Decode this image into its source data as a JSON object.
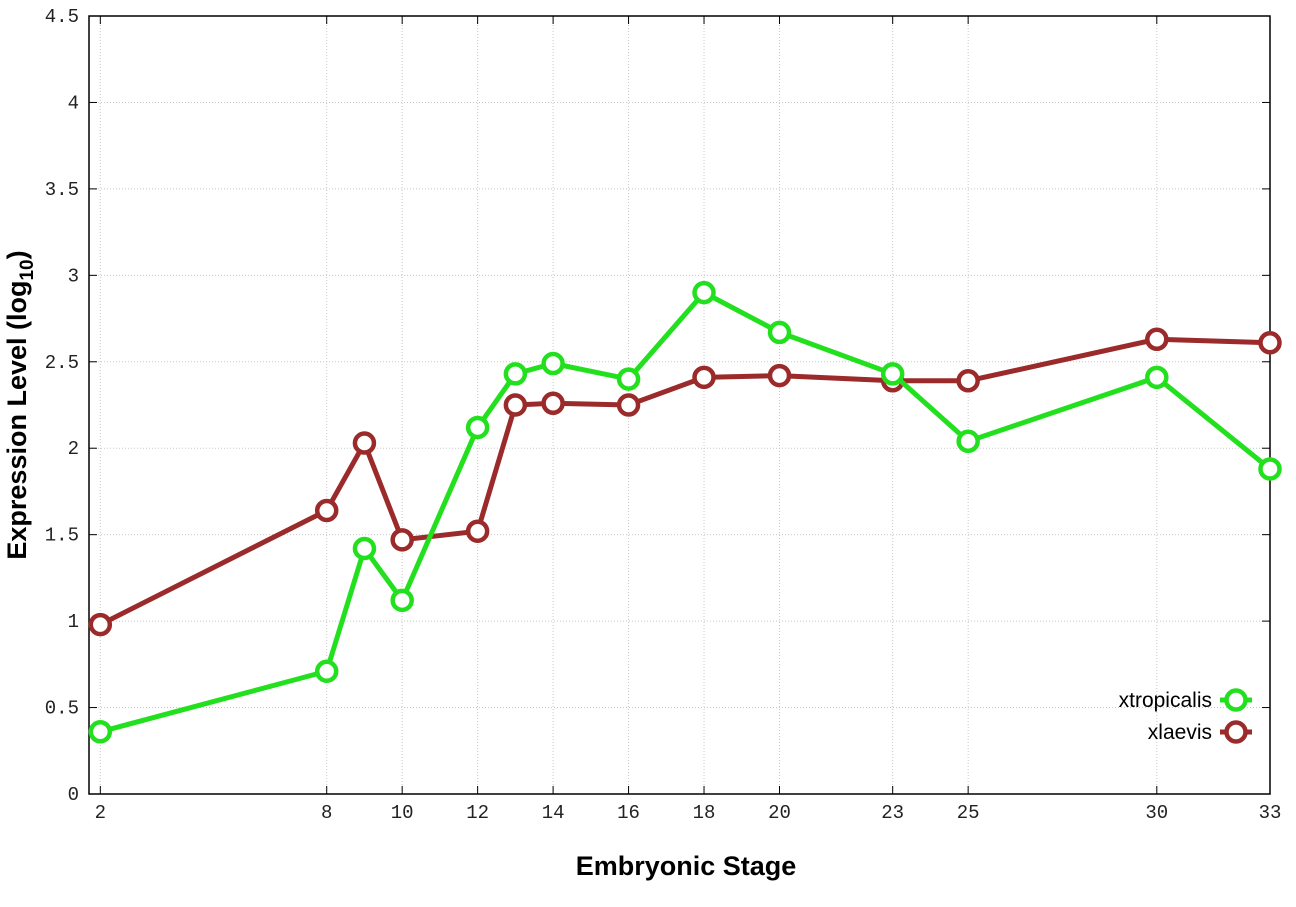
{
  "chart_data": {
    "type": "line",
    "xlabel": "Embryonic Stage",
    "ylabel": "Expression Level (log",
    "ylabel_subscript": "10",
    "ylabel_suffix": ")",
    "xlim": [
      1.7,
      33
    ],
    "ylim": [
      0,
      4.5
    ],
    "xticks": [
      2,
      8,
      10,
      12,
      14,
      16,
      18,
      20,
      23,
      25,
      30,
      33
    ],
    "yticks": [
      0,
      0.5,
      1,
      1.5,
      2,
      2.5,
      3,
      3.5,
      4,
      4.5
    ],
    "ytick_labels": [
      "0",
      "0.5",
      "1",
      "1.5",
      "2",
      "2.5",
      "3",
      "3.5",
      "4",
      "4.5"
    ],
    "grid": true,
    "legend_position": "bottom-right",
    "x": [
      2,
      8,
      9,
      10,
      12,
      13,
      14,
      16,
      18,
      20,
      23,
      25,
      30,
      33
    ],
    "series": [
      {
        "name": "xtropicalis",
        "color": "#22e01e",
        "values": [
          0.36,
          0.71,
          1.42,
          1.12,
          2.12,
          2.43,
          2.49,
          2.4,
          2.9,
          2.67,
          2.43,
          2.04,
          2.41,
          1.88
        ]
      },
      {
        "name": "xlaevis",
        "color": "#9b2a2a",
        "values": [
          0.98,
          1.64,
          2.03,
          1.47,
          1.52,
          2.25,
          2.26,
          2.25,
          2.41,
          2.42,
          2.39,
          2.39,
          2.63,
          2.61
        ]
      }
    ]
  }
}
